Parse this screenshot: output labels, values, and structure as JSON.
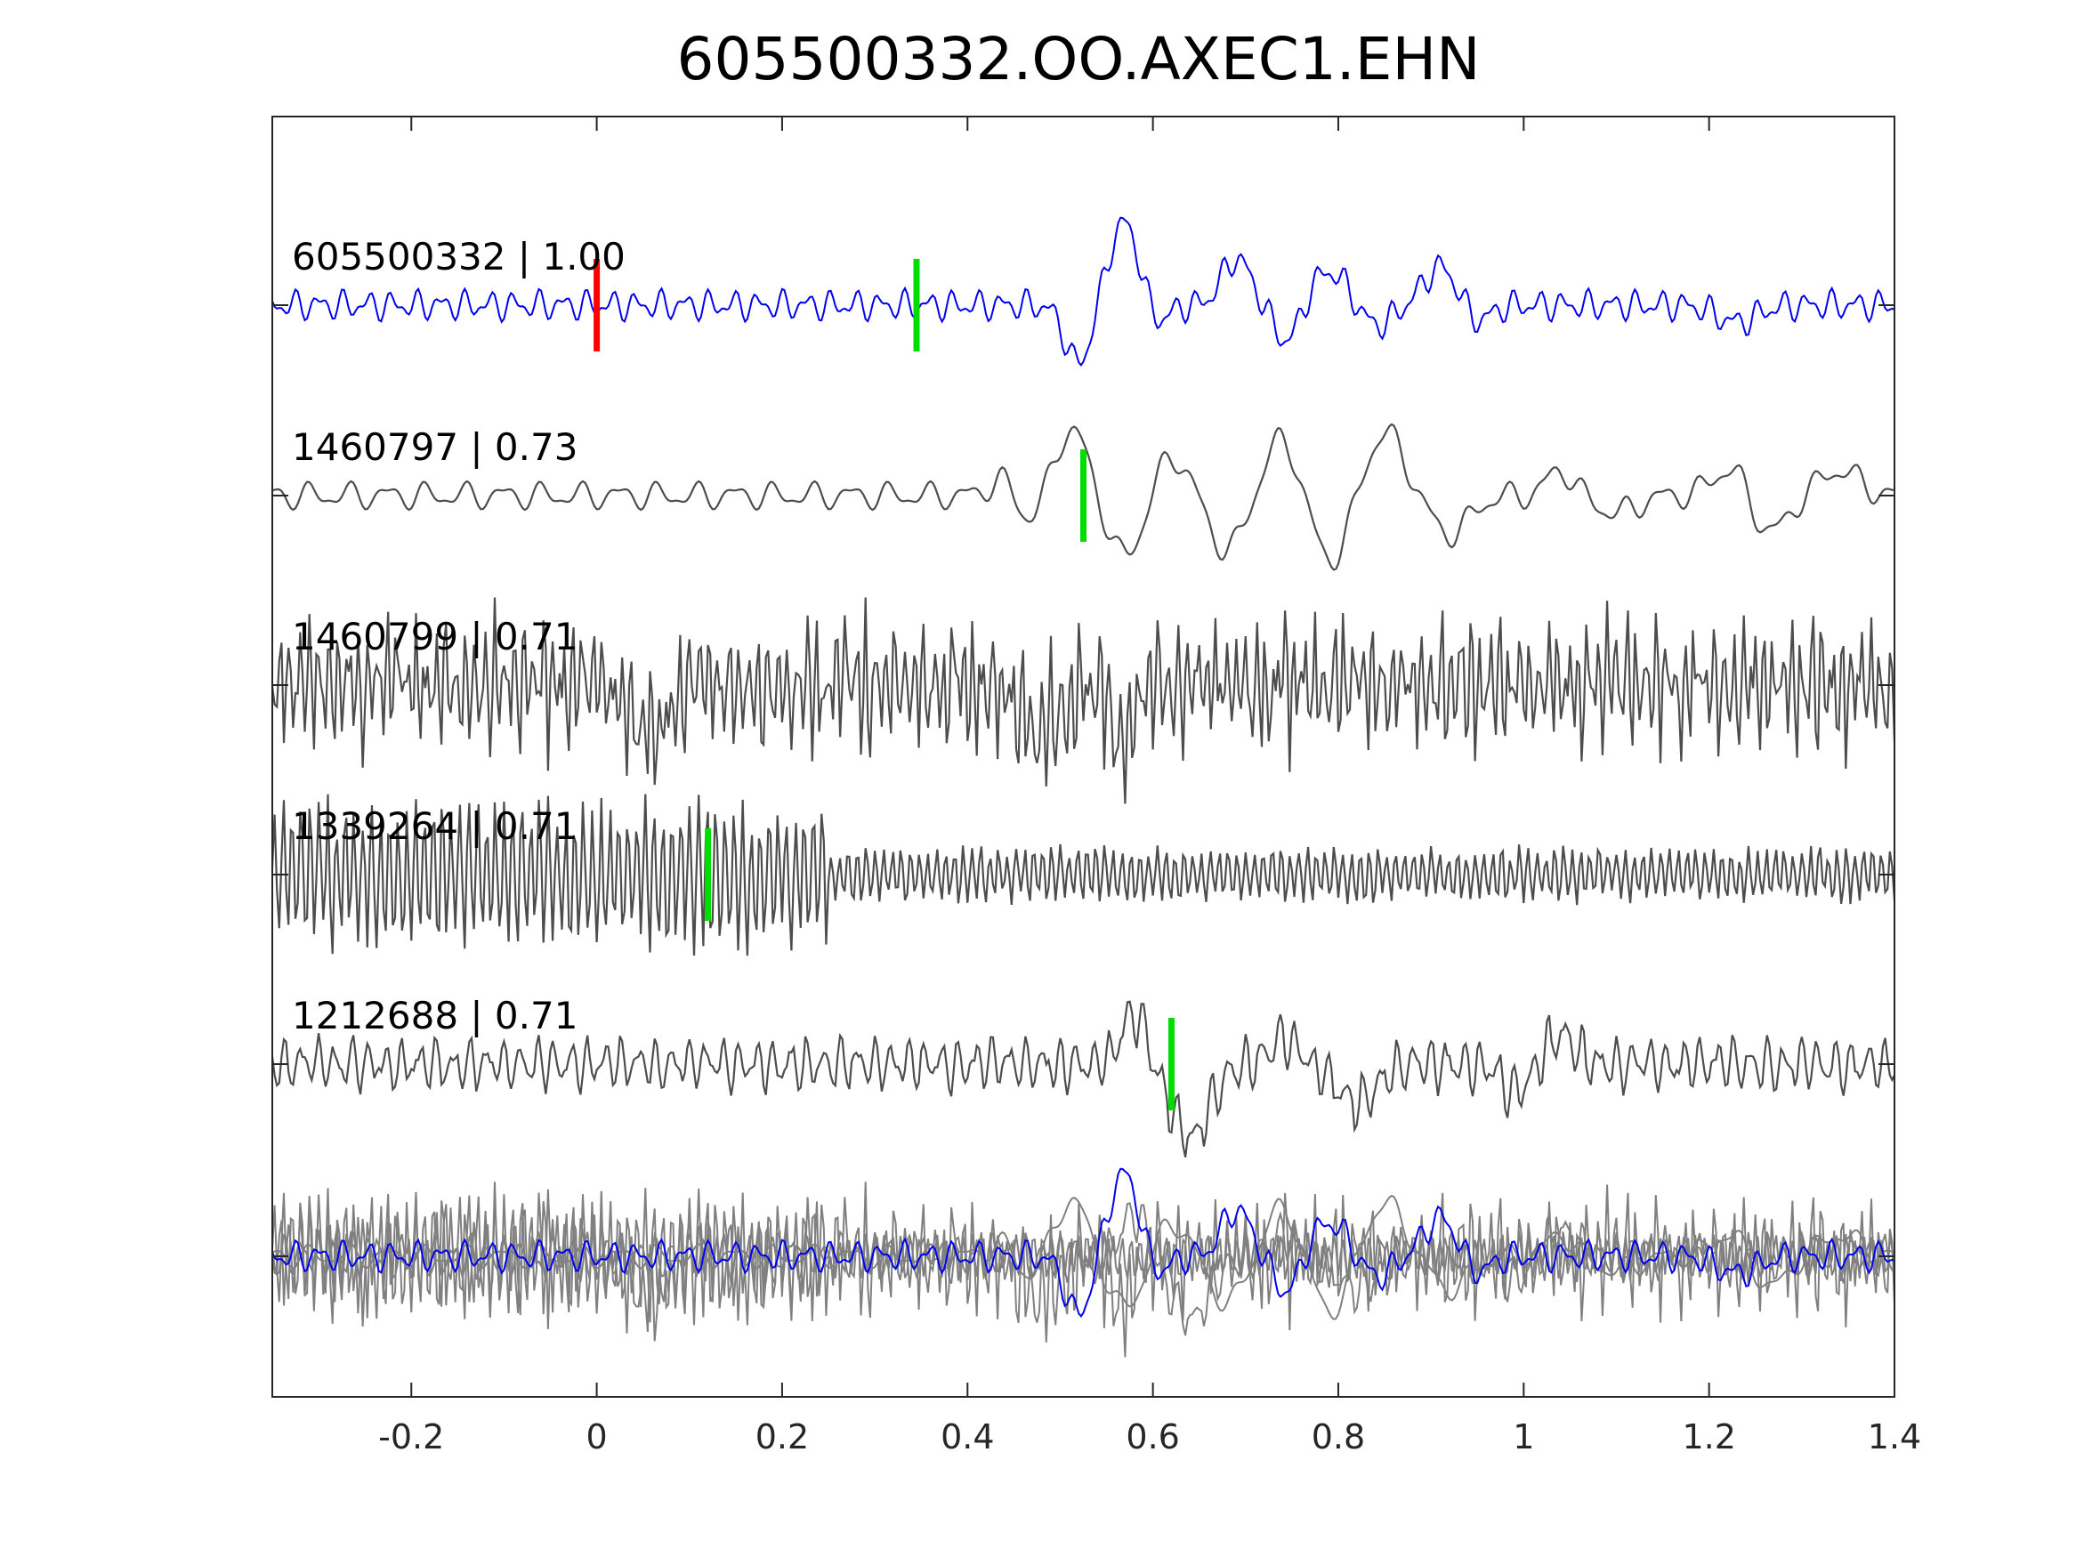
{
  "chart_data": {
    "type": "line",
    "title": "605500332.OO.AXEC1.EHN",
    "xlim": [
      -0.35,
      1.4
    ],
    "xticks": [
      {
        "value": -0.2,
        "label": "-0.2"
      },
      {
        "value": 0,
        "label": "0"
      },
      {
        "value": 0.2,
        "label": "0.2"
      },
      {
        "value": 0.4,
        "label": "0.4"
      },
      {
        "value": 0.6,
        "label": "0.6"
      },
      {
        "value": 0.8,
        "label": "0.8"
      },
      {
        "value": 1,
        "label": "1"
      },
      {
        "value": 1.2,
        "label": "1.2"
      },
      {
        "value": 1.4,
        "label": "1.4"
      }
    ],
    "grid": false,
    "colors": {
      "template": "#0000ee",
      "match": "#4d4d4d",
      "overlay": "#808080",
      "p_pick": "#ff0000",
      "s_pick": "#00dd00"
    },
    "series": [
      {
        "name": "605500332",
        "score": "1.00",
        "label": "605500332 | 1.00",
        "color": "#0000ee",
        "style": "template",
        "picks": {
          "red": 0.0,
          "green": 0.345
        },
        "events": [
          [
            0.52,
            -0.7,
            0.02
          ],
          [
            0.57,
            1.0,
            0.025
          ],
          [
            0.6,
            -0.3,
            0.02
          ],
          [
            0.69,
            0.55,
            0.022
          ],
          [
            0.745,
            -0.45,
            0.02
          ],
          [
            0.79,
            0.4,
            0.03
          ],
          [
            0.84,
            -0.25,
            0.025
          ],
          [
            0.91,
            0.45,
            0.025
          ],
          [
            0.95,
            -0.2,
            0.02
          ],
          [
            1.23,
            -0.2,
            0.03
          ]
        ]
      },
      {
        "name": "1460797",
        "score": "0.73",
        "label": "1460797 | 0.73",
        "color": "#4d4d4d",
        "style": "smooth",
        "picks": {
          "green": 0.525
        },
        "events": [
          [
            0.44,
            0.3,
            0.02
          ],
          [
            0.47,
            -0.4,
            0.03
          ],
          [
            0.51,
            0.85,
            0.03
          ],
          [
            0.57,
            -0.75,
            0.03
          ],
          [
            0.62,
            0.5,
            0.03
          ],
          [
            0.68,
            -0.65,
            0.03
          ],
          [
            0.74,
            0.7,
            0.03
          ],
          [
            0.79,
            -0.8,
            0.03
          ],
          [
            0.85,
            0.75,
            0.03
          ],
          [
            0.92,
            -0.45,
            0.03
          ],
          [
            1.04,
            0.3,
            0.02
          ],
          [
            1.1,
            -0.2,
            0.03
          ],
          [
            1.23,
            0.45,
            0.03
          ],
          [
            1.26,
            -0.55,
            0.03
          ],
          [
            1.34,
            0.3,
            0.03
          ]
        ]
      },
      {
        "name": "1460799",
        "score": "0.71",
        "label": "1460799 | 0.71",
        "color": "#4d4d4d",
        "style": "noisy",
        "picks": {},
        "events": [
          [
            0.05,
            -0.6,
            0.03
          ],
          [
            0.48,
            -0.5,
            0.03
          ],
          [
            0.57,
            -0.6,
            0.02
          ]
        ]
      },
      {
        "name": "1339264",
        "score": "0.71",
        "label": "1339264 | 0.71",
        "color": "#4d4d4d",
        "style": "burst",
        "picks": {
          "green": 0.12
        },
        "events": []
      },
      {
        "name": "1212688",
        "score": "0.71",
        "label": "1212688 | 0.71",
        "color": "#4d4d4d",
        "style": "medium",
        "picks": {
          "green": 0.62
        },
        "events": [
          [
            0.58,
            0.6,
            0.02
          ],
          [
            0.64,
            -0.85,
            0.03
          ],
          [
            0.74,
            0.3,
            0.02
          ],
          [
            0.82,
            -0.45,
            0.03
          ],
          [
            0.99,
            -0.3,
            0.02
          ],
          [
            1.04,
            0.35,
            0.02
          ]
        ]
      }
    ],
    "overlay": {
      "description_series": [
        "605500332",
        "1460797",
        "1460799",
        "1339264",
        "1212688"
      ]
    }
  }
}
